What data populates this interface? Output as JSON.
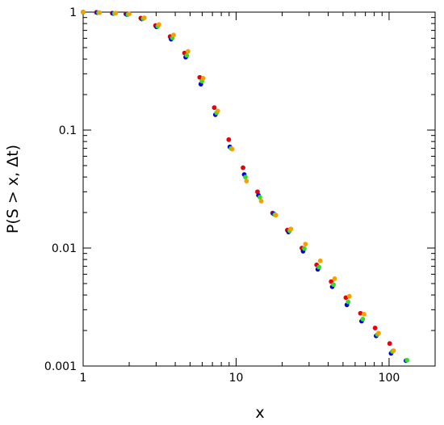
{
  "chart_data": {
    "type": "scatter",
    "title": "",
    "xlabel": "x",
    "ylabel": "P(S > x, Δt)",
    "xscale": "log",
    "yscale": "log",
    "xlim": [
      1,
      200
    ],
    "ylim": [
      0.001,
      1
    ],
    "grid": false,
    "legend": "none",
    "x_ticks": [
      {
        "value": 1,
        "label": "1"
      },
      {
        "value": 10,
        "label": "10"
      },
      {
        "value": 100,
        "label": "100"
      }
    ],
    "y_ticks": [
      {
        "value": 0.001,
        "label": "0.001"
      },
      {
        "value": 0.01,
        "label": "0.01"
      },
      {
        "value": 0.1,
        "label": "0.1"
      },
      {
        "value": 1,
        "label": "1"
      }
    ],
    "series": [
      {
        "color": "#e8000b",
        "x": [
          1.0,
          1.22,
          1.55,
          1.9,
          2.38,
          2.97,
          3.7,
          4.6,
          5.78,
          7.2,
          8.95,
          11.1,
          13.8,
          17.3,
          21.6,
          26.9,
          33.6,
          41.8,
          52.2,
          65.0,
          81.0,
          101
        ],
        "y": [
          1.0,
          0.995,
          0.98,
          0.965,
          0.89,
          0.77,
          0.62,
          0.45,
          0.28,
          0.155,
          0.083,
          0.048,
          0.03,
          0.0198,
          0.0142,
          0.01,
          0.0072,
          0.0052,
          0.0038,
          0.0028,
          0.0021,
          0.00155
        ]
      },
      {
        "color": "#0000dd",
        "x": [
          1.0,
          1.24,
          1.57,
          1.93,
          2.42,
          3.02,
          3.76,
          4.68,
          5.88,
          7.32,
          9.1,
          11.3,
          14.0,
          17.6,
          22.0,
          27.4,
          34.2,
          42.5,
          53.0,
          66.1,
          82.3,
          103,
          129
        ],
        "y": [
          1.0,
          0.99,
          0.975,
          0.955,
          0.875,
          0.75,
          0.59,
          0.415,
          0.245,
          0.135,
          0.072,
          0.042,
          0.028,
          0.0195,
          0.0137,
          0.0094,
          0.0066,
          0.0047,
          0.0033,
          0.0024,
          0.0018,
          0.00128,
          0.00111
        ]
      },
      {
        "color": "#33dd22",
        "x": [
          1.0,
          1.26,
          1.6,
          1.96,
          2.46,
          3.07,
          3.83,
          4.76,
          5.98,
          7.45,
          9.26,
          11.5,
          14.3,
          17.9,
          22.4,
          27.9,
          34.8,
          43.3,
          54.0,
          67.3,
          83.8,
          105,
          131
        ],
        "y": [
          1.0,
          0.99,
          0.975,
          0.955,
          0.88,
          0.76,
          0.605,
          0.43,
          0.26,
          0.14,
          0.07,
          0.04,
          0.027,
          0.0192,
          0.014,
          0.0099,
          0.0069,
          0.0049,
          0.0035,
          0.0025,
          0.00185,
          0.00133,
          0.00112
        ]
      },
      {
        "color": "#f5a000",
        "x": [
          1.0,
          1.28,
          1.63,
          2.0,
          2.51,
          3.13,
          3.9,
          4.85,
          6.09,
          7.59,
          9.43,
          11.7,
          14.6,
          18.2,
          22.8,
          28.4,
          35.5,
          44.1,
          55.0,
          68.6,
          85.4,
          107
        ],
        "y": [
          1.0,
          0.99,
          0.98,
          0.965,
          0.895,
          0.785,
          0.64,
          0.465,
          0.275,
          0.145,
          0.069,
          0.037,
          0.025,
          0.019,
          0.0145,
          0.0108,
          0.0078,
          0.0055,
          0.0039,
          0.00275,
          0.0019,
          0.00135
        ]
      }
    ]
  }
}
